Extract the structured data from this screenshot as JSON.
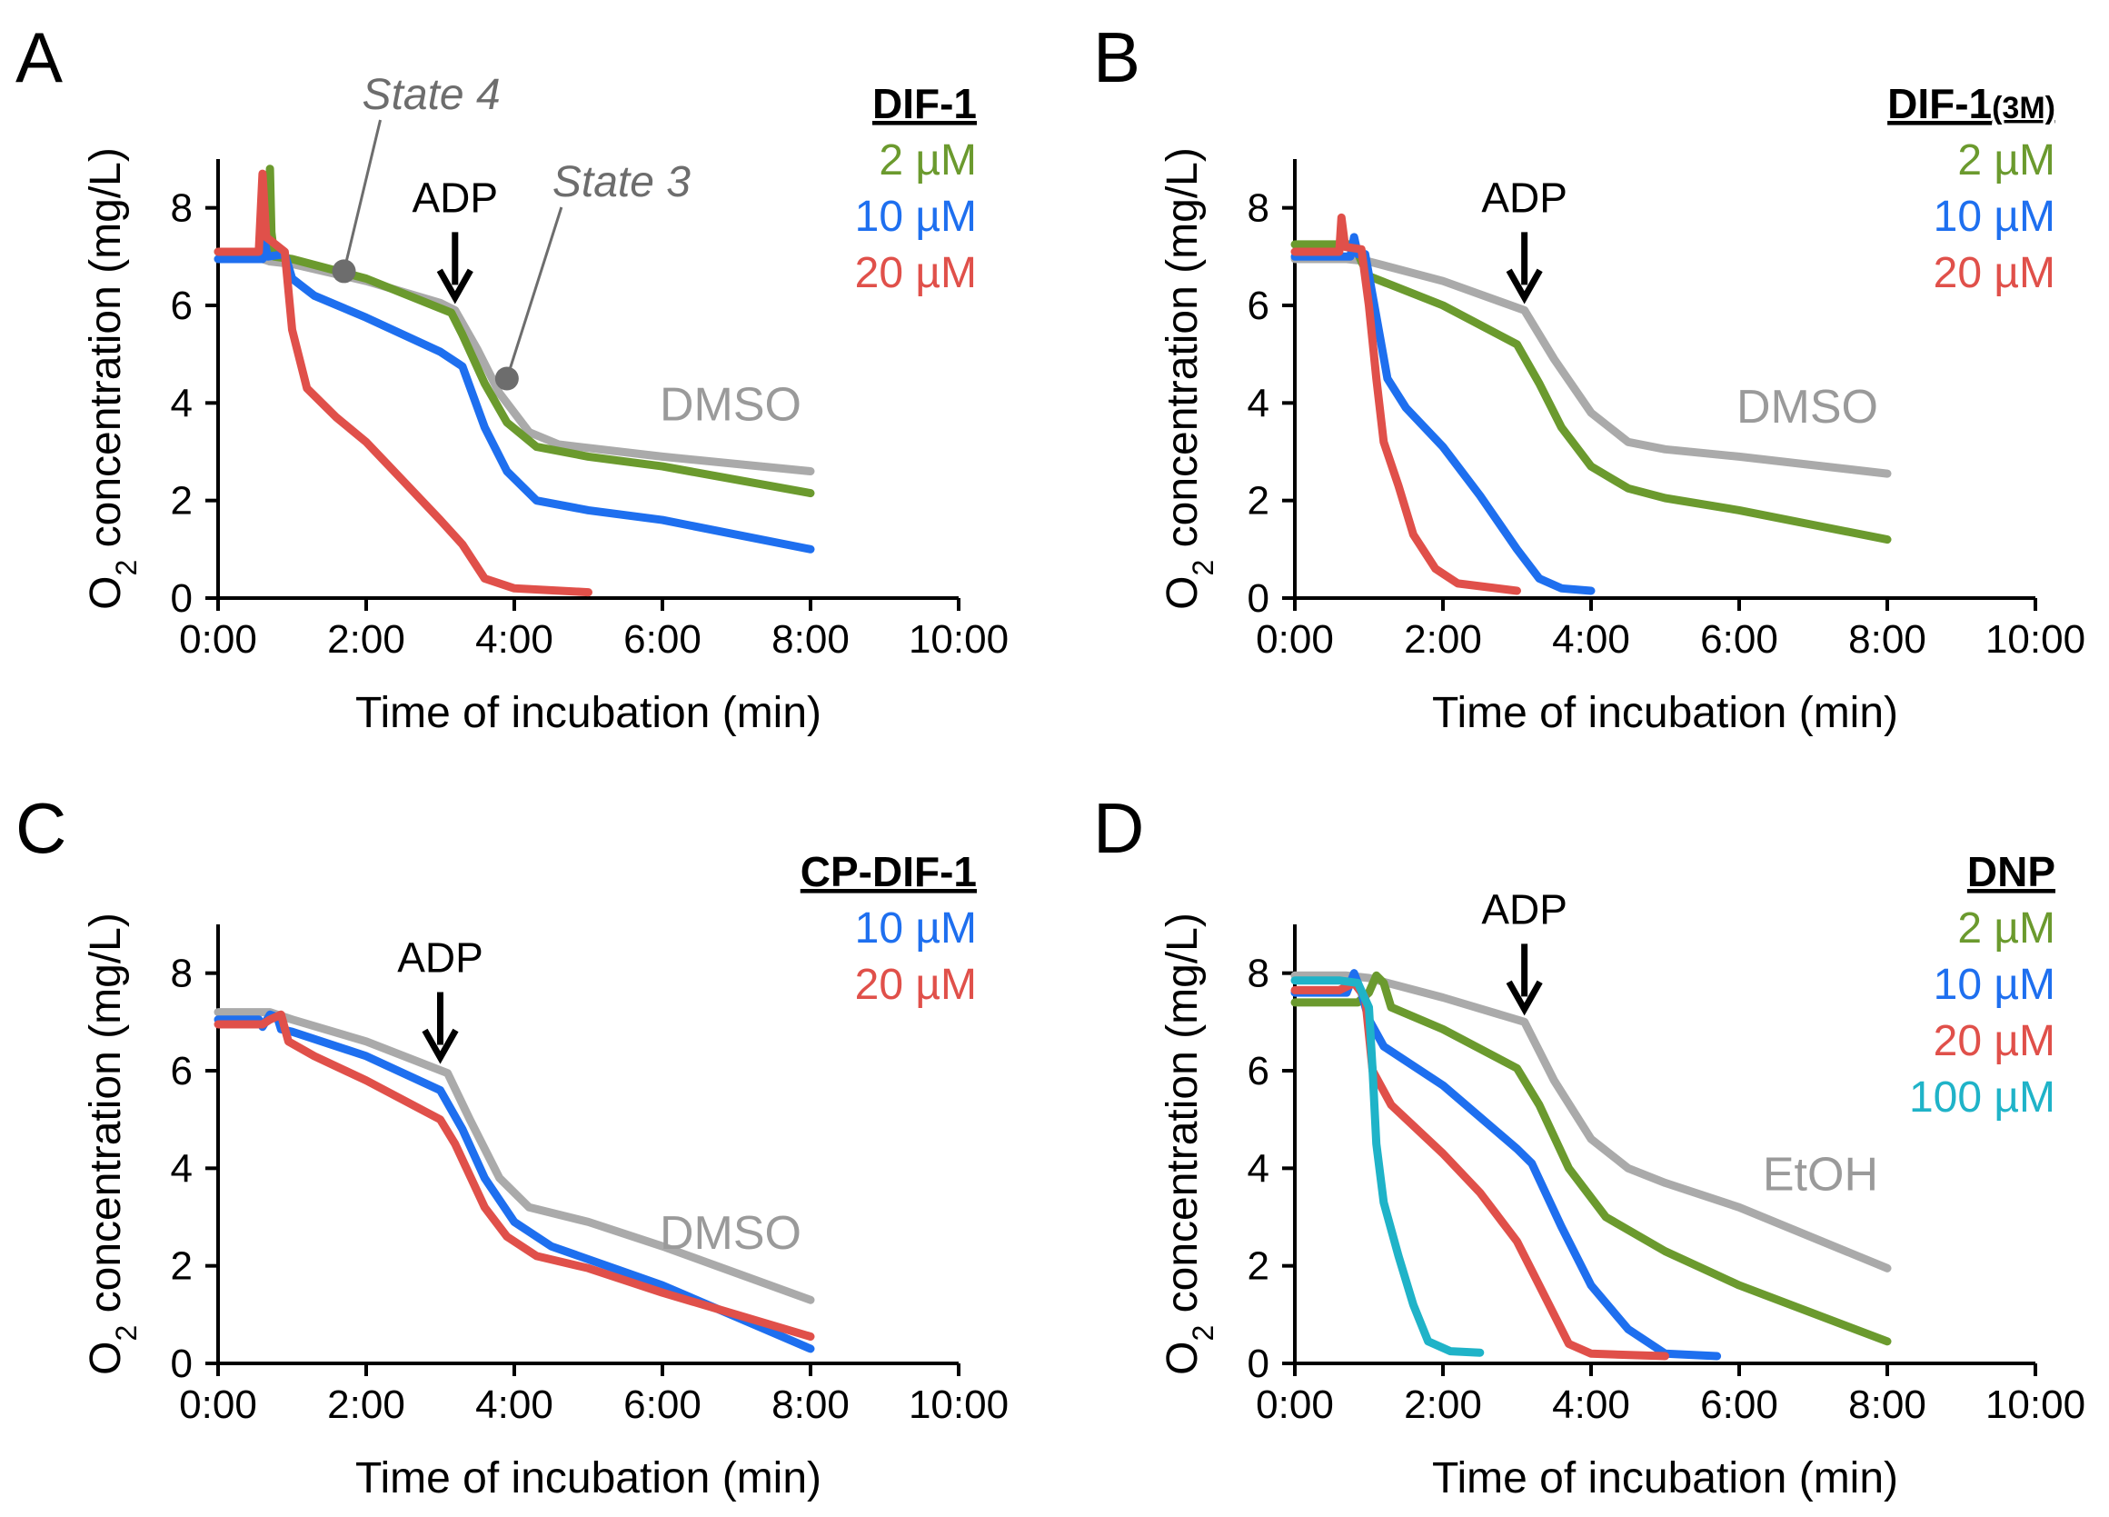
{
  "figure": {
    "x_axis_title": "Time of incubation (min)",
    "y_axis_title_prefix": "O",
    "y_axis_title_sub": "2",
    "y_axis_title_suffix": " concentration (mg/L)",
    "adp_label": "ADP"
  },
  "colors": {
    "gray": "#aaaaaa",
    "green": "#6b9a2e",
    "blue": "#1e6fef",
    "red": "#e0504a",
    "cyan": "#1fb3c8",
    "annotation": "#6d6d6d"
  },
  "chart_data": [
    {
      "type": "line",
      "panel": "A",
      "legend_title": "DIF-1",
      "control_label": "DMSO",
      "xlim": [
        0,
        10
      ],
      "ylim": [
        0,
        9
      ],
      "xticks": [
        "0:00",
        "2:00",
        "4:00",
        "6:00",
        "8:00",
        "10:00"
      ],
      "yticks": [
        "0",
        "2",
        "4",
        "6",
        "8"
      ],
      "adp_time": 3.2,
      "state_labels": [
        {
          "text": "State 4",
          "point": [
            1.7,
            6.7
          ]
        },
        {
          "text": "State 3",
          "point": [
            3.9,
            4.5
          ]
        }
      ],
      "series": [
        {
          "name": "DMSO",
          "color": "gray",
          "legend": false,
          "points": [
            [
              0,
              6.95
            ],
            [
              0.6,
              6.95
            ],
            [
              0.7,
              6.9
            ],
            [
              1,
              6.85
            ],
            [
              2,
              6.5
            ],
            [
              3,
              6.05
            ],
            [
              3.2,
              5.9
            ],
            [
              3.5,
              5.1
            ],
            [
              3.8,
              4.2
            ],
            [
              4.2,
              3.4
            ],
            [
              4.6,
              3.15
            ],
            [
              6,
              2.9
            ],
            [
              8,
              2.6
            ]
          ]
        },
        {
          "name": "2 µM",
          "color": "green",
          "legend": true,
          "points": [
            [
              0,
              7.1
            ],
            [
              0.65,
              7.1
            ],
            [
              0.7,
              8.8
            ],
            [
              0.72,
              7.5
            ],
            [
              0.76,
              7.0
            ],
            [
              1,
              6.95
            ],
            [
              2,
              6.55
            ],
            [
              3.15,
              5.85
            ],
            [
              3.3,
              5.4
            ],
            [
              3.6,
              4.4
            ],
            [
              3.9,
              3.6
            ],
            [
              4.3,
              3.1
            ],
            [
              5,
              2.9
            ],
            [
              6,
              2.7
            ],
            [
              8,
              2.15
            ]
          ]
        },
        {
          "name": "10 µM",
          "color": "blue",
          "legend": true,
          "points": [
            [
              0,
              6.95
            ],
            [
              0.6,
              6.95
            ],
            [
              0.63,
              7.3
            ],
            [
              0.67,
              7.0
            ],
            [
              0.9,
              7.05
            ],
            [
              1,
              6.55
            ],
            [
              1.3,
              6.2
            ],
            [
              2,
              5.75
            ],
            [
              3,
              5.05
            ],
            [
              3.3,
              4.75
            ],
            [
              3.6,
              3.5
            ],
            [
              3.9,
              2.6
            ],
            [
              4.3,
              2.0
            ],
            [
              5,
              1.8
            ],
            [
              6,
              1.6
            ],
            [
              8,
              1.0
            ]
          ]
        },
        {
          "name": "20 µM",
          "color": "red",
          "legend": true,
          "points": [
            [
              0,
              7.1
            ],
            [
              0.55,
              7.1
            ],
            [
              0.6,
              8.7
            ],
            [
              0.65,
              7.4
            ],
            [
              0.9,
              7.1
            ],
            [
              1.0,
              5.5
            ],
            [
              1.2,
              4.3
            ],
            [
              1.6,
              3.7
            ],
            [
              2,
              3.2
            ],
            [
              2.5,
              2.4
            ],
            [
              3,
              1.6
            ],
            [
              3.3,
              1.1
            ],
            [
              3.6,
              0.4
            ],
            [
              4,
              0.2
            ],
            [
              5,
              0.12
            ]
          ]
        }
      ]
    },
    {
      "type": "line",
      "panel": "B",
      "legend_title_main": "DIF-1",
      "legend_title_sub": "(3M)",
      "control_label": "DMSO",
      "xlim": [
        0,
        10
      ],
      "ylim": [
        0,
        9
      ],
      "xticks": [
        "0:00",
        "2:00",
        "4:00",
        "6:00",
        "8:00",
        "10:00"
      ],
      "yticks": [
        "0",
        "2",
        "4",
        "6",
        "8"
      ],
      "adp_time": 3.1,
      "series": [
        {
          "name": "DMSO",
          "color": "gray",
          "legend": false,
          "points": [
            [
              0,
              6.95
            ],
            [
              0.7,
              6.95
            ],
            [
              1,
              6.9
            ],
            [
              2,
              6.5
            ],
            [
              3.1,
              5.9
            ],
            [
              3.5,
              4.9
            ],
            [
              4,
              3.8
            ],
            [
              4.5,
              3.2
            ],
            [
              5,
              3.05
            ],
            [
              6,
              2.9
            ],
            [
              8,
              2.55
            ]
          ]
        },
        {
          "name": "2 µM",
          "color": "green",
          "legend": true,
          "points": [
            [
              0,
              7.25
            ],
            [
              0.8,
              7.25
            ],
            [
              0.9,
              6.9
            ],
            [
              1,
              6.6
            ],
            [
              2,
              6.0
            ],
            [
              3.0,
              5.2
            ],
            [
              3.3,
              4.4
            ],
            [
              3.6,
              3.5
            ],
            [
              4,
              2.7
            ],
            [
              4.5,
              2.25
            ],
            [
              5,
              2.05
            ],
            [
              6,
              1.8
            ],
            [
              8,
              1.2
            ]
          ]
        },
        {
          "name": "10 µM",
          "color": "blue",
          "legend": true,
          "points": [
            [
              0,
              7.0
            ],
            [
              0.75,
              7.0
            ],
            [
              0.8,
              7.4
            ],
            [
              0.85,
              7.05
            ],
            [
              0.95,
              7.05
            ],
            [
              1.05,
              6.2
            ],
            [
              1.25,
              4.5
            ],
            [
              1.5,
              3.9
            ],
            [
              2,
              3.1
            ],
            [
              2.5,
              2.1
            ],
            [
              3,
              1.0
            ],
            [
              3.3,
              0.4
            ],
            [
              3.6,
              0.2
            ],
            [
              4,
              0.15
            ]
          ]
        },
        {
          "name": "20 µM",
          "color": "red",
          "legend": true,
          "points": [
            [
              0,
              7.1
            ],
            [
              0.6,
              7.1
            ],
            [
              0.63,
              7.8
            ],
            [
              0.68,
              7.2
            ],
            [
              0.9,
              7.15
            ],
            [
              1.0,
              6.0
            ],
            [
              1.1,
              4.5
            ],
            [
              1.2,
              3.2
            ],
            [
              1.4,
              2.3
            ],
            [
              1.6,
              1.3
            ],
            [
              1.9,
              0.6
            ],
            [
              2.2,
              0.3
            ],
            [
              3,
              0.15
            ]
          ]
        }
      ]
    },
    {
      "type": "line",
      "panel": "C",
      "legend_title": "CP-DIF-1",
      "control_label": "DMSO",
      "xlim": [
        0,
        10
      ],
      "ylim": [
        0,
        9
      ],
      "xticks": [
        "0:00",
        "2:00",
        "4:00",
        "6:00",
        "8:00",
        "10:00"
      ],
      "yticks": [
        "0",
        "2",
        "4",
        "6",
        "8"
      ],
      "adp_time": 3.0,
      "series": [
        {
          "name": "DMSO",
          "color": "gray",
          "legend": false,
          "points": [
            [
              0,
              7.2
            ],
            [
              0.7,
              7.2
            ],
            [
              1,
              7.05
            ],
            [
              2,
              6.6
            ],
            [
              3.1,
              5.95
            ],
            [
              3.4,
              5.0
            ],
            [
              3.8,
              3.8
            ],
            [
              4.2,
              3.2
            ],
            [
              5,
              2.9
            ],
            [
              6,
              2.4
            ],
            [
              8,
              1.3
            ]
          ]
        },
        {
          "name": "10 µM",
          "color": "blue",
          "legend": true,
          "points": [
            [
              0,
              7.05
            ],
            [
              0.55,
              7.05
            ],
            [
              0.6,
              6.9
            ],
            [
              0.7,
              7.15
            ],
            [
              0.8,
              7.1
            ],
            [
              0.85,
              6.85
            ],
            [
              1.0,
              6.8
            ],
            [
              2,
              6.3
            ],
            [
              3.0,
              5.6
            ],
            [
              3.3,
              4.8
            ],
            [
              3.6,
              3.8
            ],
            [
              4,
              2.9
            ],
            [
              4.5,
              2.4
            ],
            [
              6,
              1.6
            ],
            [
              8,
              0.3
            ]
          ]
        },
        {
          "name": "20 µM",
          "color": "red",
          "legend": true,
          "points": [
            [
              0,
              6.95
            ],
            [
              0.6,
              6.95
            ],
            [
              0.7,
              7.05
            ],
            [
              0.85,
              7.15
            ],
            [
              0.95,
              6.6
            ],
            [
              1.3,
              6.3
            ],
            [
              2,
              5.8
            ],
            [
              3,
              5.0
            ],
            [
              3.2,
              4.5
            ],
            [
              3.6,
              3.2
            ],
            [
              3.9,
              2.6
            ],
            [
              4.3,
              2.2
            ],
            [
              5,
              1.95
            ],
            [
              6,
              1.45
            ],
            [
              8,
              0.55
            ]
          ]
        }
      ]
    },
    {
      "type": "line",
      "panel": "D",
      "legend_title": "DNP",
      "control_label": "EtOH",
      "xlim": [
        0,
        10
      ],
      "ylim": [
        0,
        9
      ],
      "xticks": [
        "0:00",
        "2:00",
        "4:00",
        "6:00",
        "8:00",
        "10:00"
      ],
      "yticks": [
        "0",
        "2",
        "4",
        "6",
        "8"
      ],
      "adp_time": 3.1,
      "series": [
        {
          "name": "EtOH",
          "color": "gray",
          "legend": false,
          "points": [
            [
              0,
              7.95
            ],
            [
              0.7,
              7.95
            ],
            [
              1,
              7.9
            ],
            [
              2,
              7.5
            ],
            [
              3.1,
              7.0
            ],
            [
              3.5,
              5.8
            ],
            [
              4,
              4.6
            ],
            [
              4.5,
              4.0
            ],
            [
              5,
              3.7
            ],
            [
              6,
              3.2
            ],
            [
              8,
              1.95
            ]
          ]
        },
        {
          "name": "2 µM",
          "color": "green",
          "legend": true,
          "points": [
            [
              0,
              7.4
            ],
            [
              0.85,
              7.4
            ],
            [
              1.0,
              7.6
            ],
            [
              1.1,
              7.95
            ],
            [
              1.2,
              7.8
            ],
            [
              1.3,
              7.3
            ],
            [
              2,
              6.85
            ],
            [
              3,
              6.05
            ],
            [
              3.3,
              5.3
            ],
            [
              3.7,
              4.0
            ],
            [
              4.2,
              3.0
            ],
            [
              5,
              2.3
            ],
            [
              6,
              1.6
            ],
            [
              8,
              0.45
            ]
          ]
        },
        {
          "name": "10 µM",
          "color": "blue",
          "legend": true,
          "points": [
            [
              0,
              7.6
            ],
            [
              0.7,
              7.6
            ],
            [
              0.8,
              8.0
            ],
            [
              0.9,
              7.6
            ],
            [
              1.0,
              7.05
            ],
            [
              1.2,
              6.5
            ],
            [
              2,
              5.7
            ],
            [
              3,
              4.4
            ],
            [
              3.2,
              4.1
            ],
            [
              3.6,
              2.8
            ],
            [
              4,
              1.6
            ],
            [
              4.5,
              0.7
            ],
            [
              5,
              0.2
            ],
            [
              5.7,
              0.15
            ]
          ]
        },
        {
          "name": "20 µM",
          "color": "red",
          "legend": true,
          "points": [
            [
              0,
              7.65
            ],
            [
              0.6,
              7.65
            ],
            [
              0.8,
              7.8
            ],
            [
              0.95,
              7.5
            ],
            [
              1.05,
              6.0
            ],
            [
              1.3,
              5.3
            ],
            [
              2,
              4.3
            ],
            [
              2.5,
              3.5
            ],
            [
              3,
              2.5
            ],
            [
              3.3,
              1.6
            ],
            [
              3.7,
              0.4
            ],
            [
              4,
              0.2
            ],
            [
              5,
              0.15
            ]
          ]
        },
        {
          "name": "100 µM",
          "color": "cyan",
          "legend": true,
          "points": [
            [
              0,
              7.85
            ],
            [
              0.6,
              7.85
            ],
            [
              0.85,
              7.8
            ],
            [
              1.0,
              7.3
            ],
            [
              1.05,
              6.0
            ],
            [
              1.1,
              4.5
            ],
            [
              1.2,
              3.3
            ],
            [
              1.4,
              2.2
            ],
            [
              1.6,
              1.2
            ],
            [
              1.8,
              0.45
            ],
            [
              2.1,
              0.25
            ],
            [
              2.5,
              0.22
            ]
          ]
        }
      ]
    }
  ]
}
